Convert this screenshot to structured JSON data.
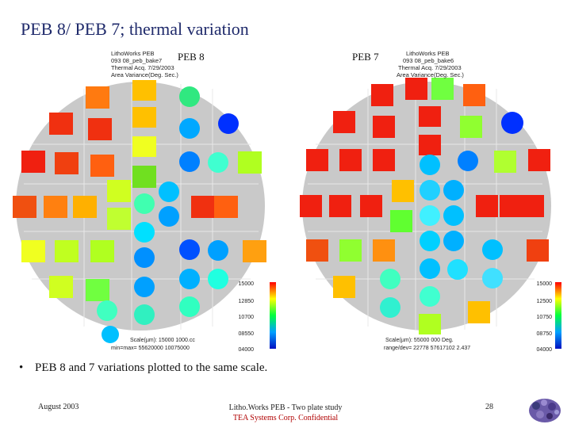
{
  "slide": {
    "title": "PEB 8/ PEB 7; thermal variation",
    "bullet": "PEB 8 and 7 variations plotted to the same scale.",
    "footer_date": "August 2003",
    "footer_line1": "Litho.Works PEB - Two plate study",
    "footer_line2": "TEA Systems Corp. Confidential",
    "page_number": "28"
  },
  "plots": [
    {
      "label": "PEB 8",
      "header_lines": [
        "LithoWorks PEB",
        "093 08_peb_bake7",
        "Thermal Acq. 7/29/2003",
        "Area Variance(Deg. Sec.)"
      ],
      "scale_ticks": [
        "15000",
        "12850",
        "10700",
        "08550",
        "04000"
      ],
      "stats_lines": [
        "Scale(µm): 15000 1000.cc",
        "min=max= 55620000 10075000"
      ]
    },
    {
      "label": "PEB 7",
      "header_lines": [
        "LithoWorks PEB",
        "093 08_peb_bake6",
        "Thermal Acq. 7/29/2003",
        "Area Variance(Deg. Sec.)"
      ],
      "scale_ticks": [
        "15000",
        "12500",
        "10750",
        "08750",
        "04000"
      ],
      "stats_lines": [
        "Scale(µm): 55000 000 Deg.",
        "range/dev= 22778 57617102 2.437"
      ]
    }
  ],
  "colors": {
    "title": "#1f2a6b",
    "confidential": "#b00000",
    "wafer_fill": "#c9c9c9",
    "grid": "#e8e8e8"
  }
}
